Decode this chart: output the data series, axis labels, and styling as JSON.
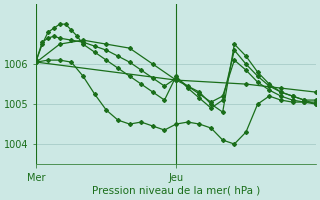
{
  "background_color": "#cce8e4",
  "grid_color": "#a8ccc8",
  "line_color": "#1a6e1a",
  "xlabel": "Pression niveau de la mer( hPa )",
  "xlim": [
    0,
    48
  ],
  "ylim": [
    1003.5,
    1007.5
  ],
  "y_ticks": [
    1004,
    1005,
    1006
  ],
  "x_tick_positions": [
    0,
    24
  ],
  "x_tick_labels": [
    "Mer",
    "Jeu"
  ],
  "vline_positions": [
    0,
    24
  ],
  "series": [
    {
      "x": [
        0,
        1,
        2,
        3,
        4,
        5,
        6,
        7,
        8,
        10,
        12,
        14,
        16,
        18,
        20,
        22,
        24,
        26,
        28,
        30,
        32,
        34,
        36,
        38,
        40,
        42,
        44,
        46,
        48
      ],
      "y": [
        1006.1,
        1006.5,
        1006.8,
        1006.9,
        1007.0,
        1007.0,
        1006.85,
        1006.7,
        1006.5,
        1006.3,
        1006.1,
        1005.9,
        1005.7,
        1005.5,
        1005.3,
        1005.1,
        1005.7,
        1005.4,
        1005.15,
        1004.9,
        1005.1,
        1006.35,
        1006.0,
        1005.7,
        1005.45,
        1005.3,
        1005.2,
        1005.1,
        1005.1
      ]
    },
    {
      "x": [
        0,
        1,
        2,
        3,
        4,
        6,
        8,
        10,
        12,
        14,
        16,
        18,
        20,
        22,
        24,
        26,
        28,
        30,
        32,
        34,
        36,
        38,
        40,
        42,
        44,
        46,
        48
      ],
      "y": [
        1006.1,
        1006.55,
        1006.65,
        1006.7,
        1006.65,
        1006.6,
        1006.55,
        1006.45,
        1006.35,
        1006.2,
        1006.05,
        1005.85,
        1005.65,
        1005.45,
        1005.65,
        1005.45,
        1005.25,
        1005.05,
        1005.2,
        1006.1,
        1005.85,
        1005.55,
        1005.35,
        1005.2,
        1005.1,
        1005.05,
        1005.0
      ]
    },
    {
      "x": [
        0,
        24,
        36,
        42,
        48
      ],
      "y": [
        1006.05,
        1005.6,
        1005.5,
        1005.4,
        1005.3
      ]
    },
    {
      "x": [
        0,
        2,
        4,
        6,
        8,
        10,
        12,
        14,
        16,
        18,
        20,
        22,
        24,
        26,
        28,
        30,
        32,
        34,
        36,
        38,
        40,
        42,
        44,
        46,
        48
      ],
      "y": [
        1006.05,
        1006.1,
        1006.1,
        1006.05,
        1005.7,
        1005.25,
        1004.85,
        1004.6,
        1004.5,
        1004.55,
        1004.45,
        1004.35,
        1004.5,
        1004.55,
        1004.5,
        1004.4,
        1004.1,
        1004.0,
        1004.3,
        1005.0,
        1005.2,
        1005.1,
        1005.05,
        1005.05,
        1005.05
      ]
    },
    {
      "x": [
        0,
        4,
        8,
        12,
        16,
        20,
        24,
        28,
        30,
        32,
        34,
        36,
        38,
        40,
        42,
        44,
        46,
        48
      ],
      "y": [
        1006.05,
        1006.5,
        1006.6,
        1006.5,
        1006.4,
        1006.0,
        1005.6,
        1005.3,
        1005.0,
        1004.8,
        1006.5,
        1006.2,
        1005.8,
        1005.5,
        1005.3,
        1005.2,
        1005.1,
        1005.0
      ]
    }
  ]
}
